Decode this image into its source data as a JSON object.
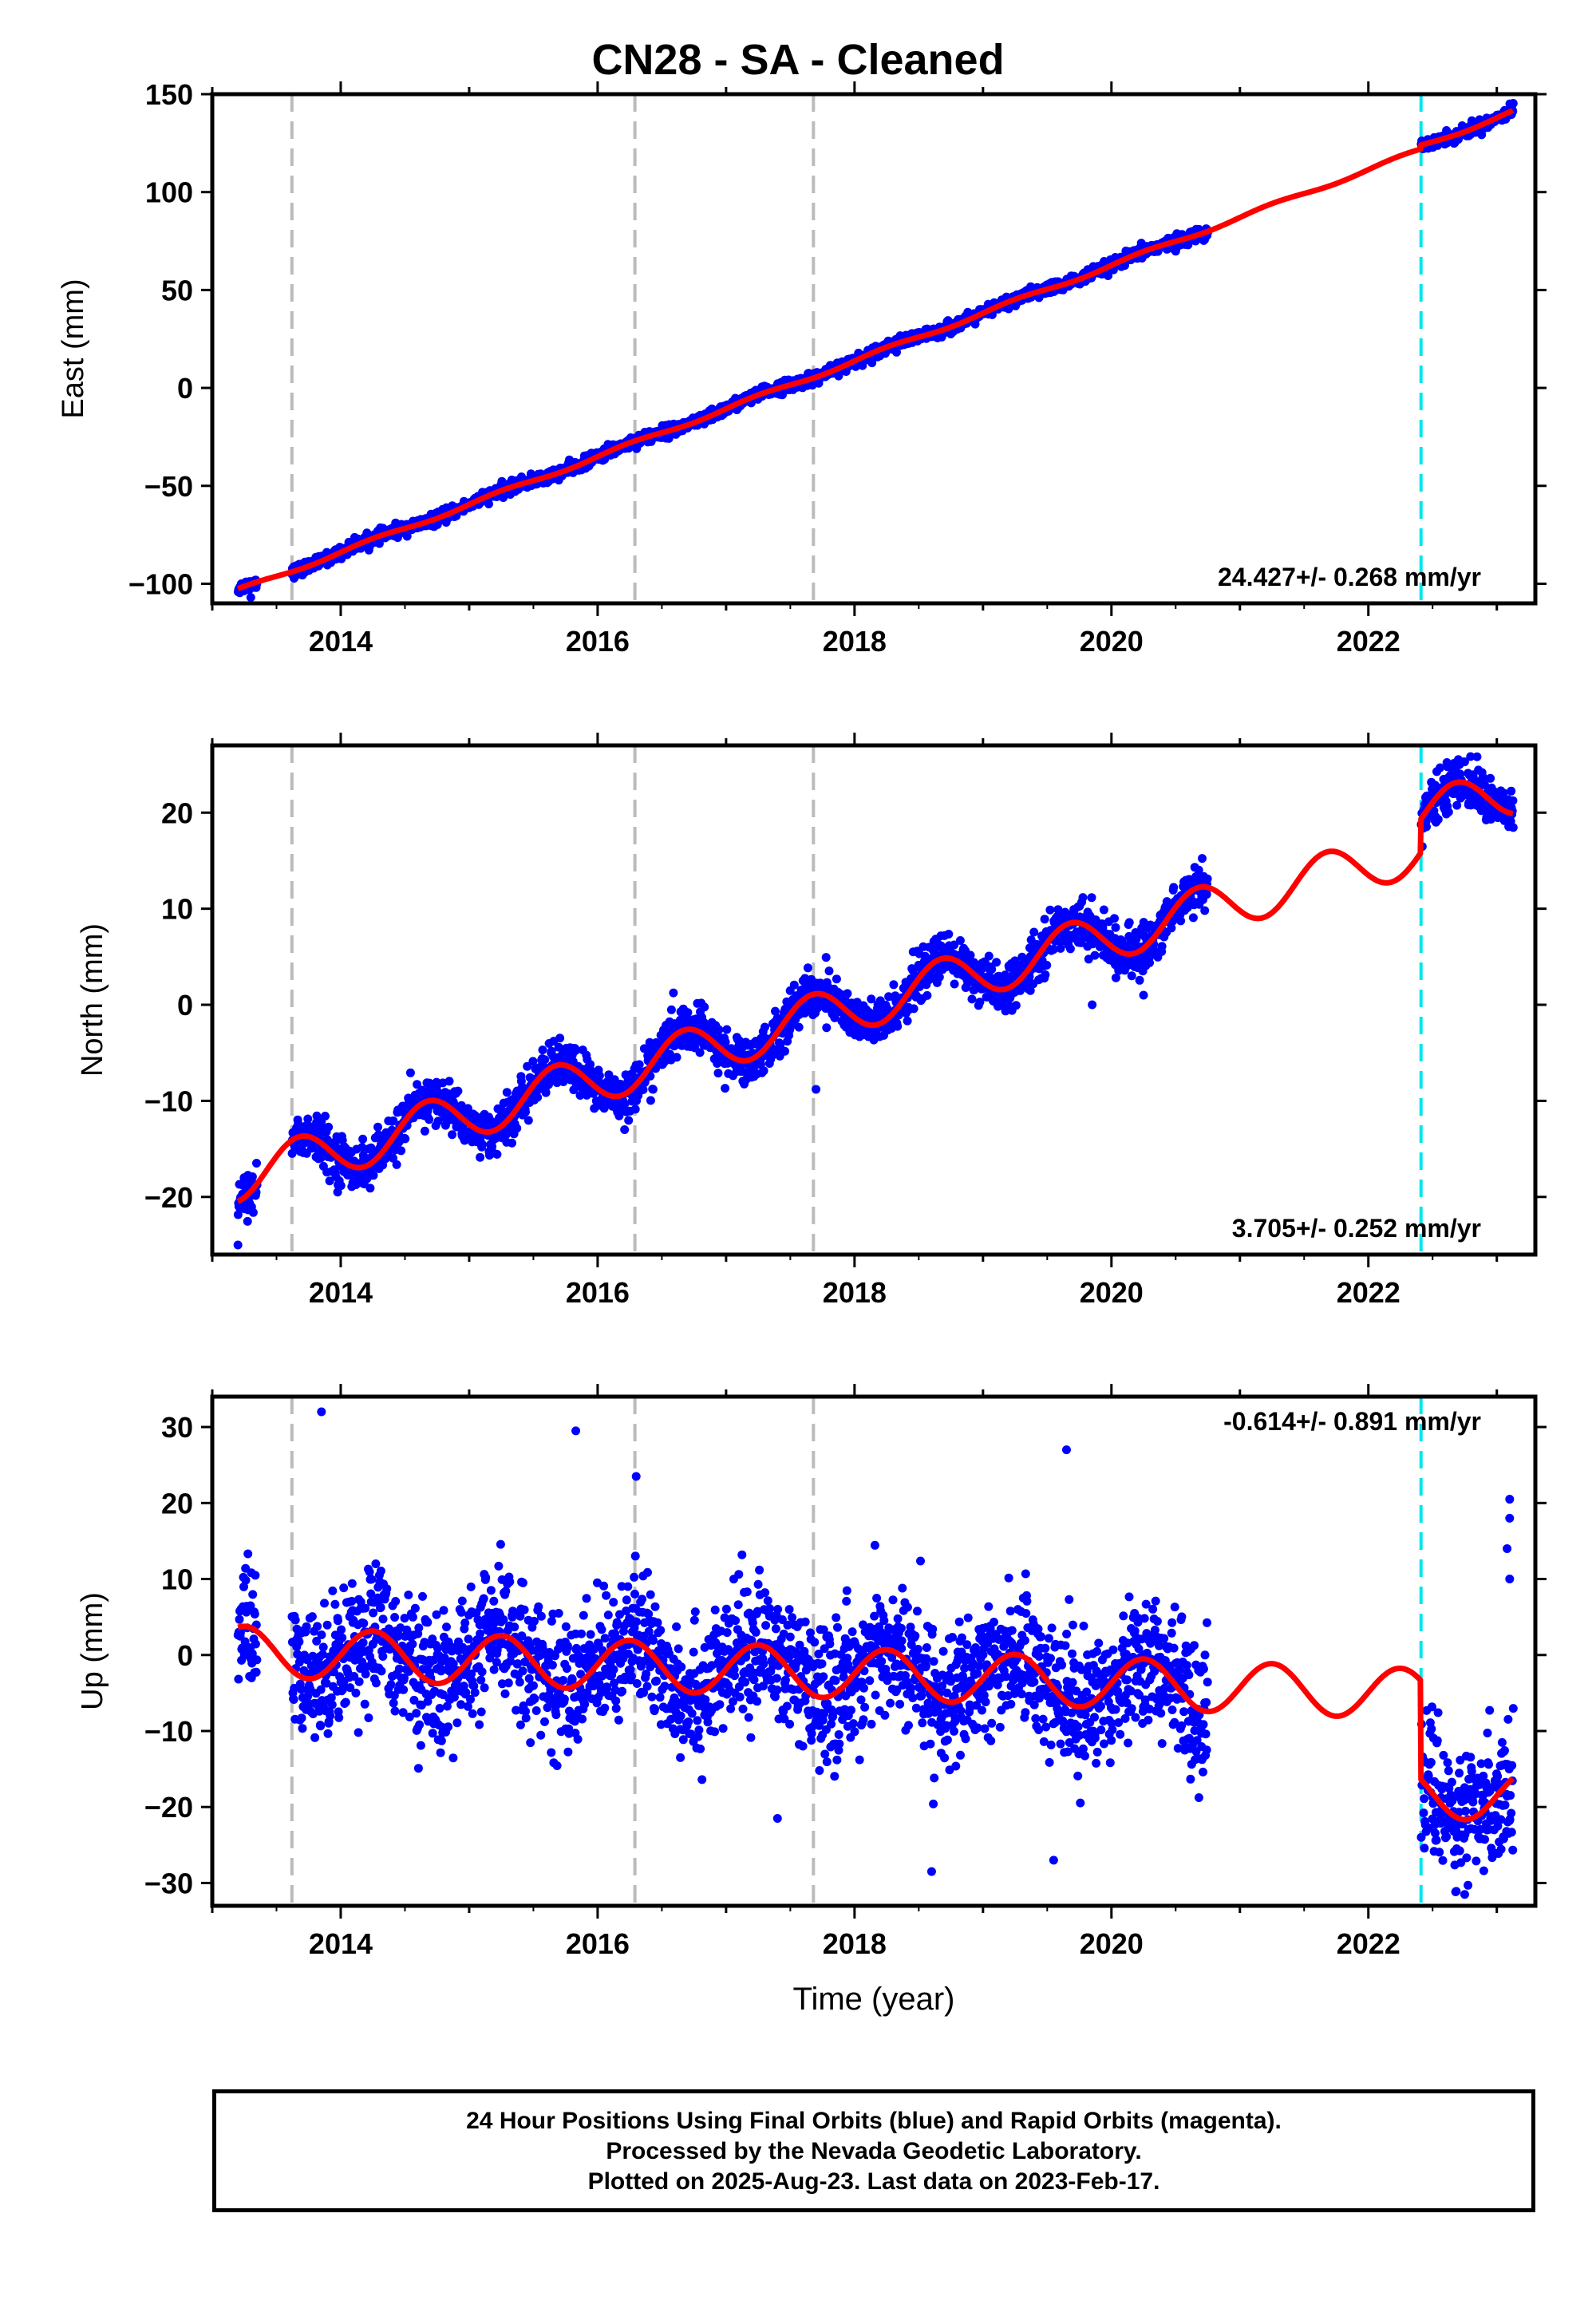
{
  "title": "CN28  - SA - Cleaned",
  "xlabel": "Time (year)",
  "footer": {
    "line1": "24 Hour Positions Using Final Orbits (blue) and Rapid Orbits (magenta).",
    "line2": "Processed by the Nevada Geodetic Laboratory.",
    "line3": "Plotted on 2025-Aug-23. Last data on 2023-Feb-17."
  },
  "colors": {
    "points": "#0000ff",
    "fit": "#ff0000",
    "gray_events": "#bbbbbb",
    "cyan_event": "#00e5ee"
  },
  "chart_data": [
    {
      "type": "scatter",
      "ylabel": "East (mm)",
      "rate_label": "24.427+/- 0.268 mm/yr",
      "rate_position": "bottom-right",
      "xlim": [
        2013.0,
        2023.3
      ],
      "ylim": [
        -110,
        150
      ],
      "xticks": [
        2014,
        2016,
        2018,
        2020,
        2022
      ],
      "yticks": [
        -100,
        -50,
        0,
        50,
        100,
        150
      ],
      "y_tick_labels": [
        "−100",
        "−50",
        "0",
        "50",
        "100",
        "150"
      ],
      "gray_event_lines": [
        2013.62,
        2016.29,
        2017.68
      ],
      "cyan_event_lines": [
        2022.41
      ],
      "fit_model": {
        "type": "linear-seasonal",
        "ref_year": 2013.2,
        "offset": -103.5,
        "rate": 24.427,
        "annual_amp": 1.0,
        "annual_phase": 0.0,
        "offset_2022_41": 2.0
      },
      "data_segments": [
        [
          2013.2,
          2013.35
        ],
        [
          2013.62,
          2020.75
        ],
        [
          2022.41,
          2023.13
        ]
      ],
      "scatter_sigma": 1.5,
      "outliers": [
        {
          "x": 2013.3,
          "y": -107
        }
      ]
    },
    {
      "type": "scatter",
      "ylabel": "North (mm)",
      "rate_label": "3.705+/- 0.252 mm/yr",
      "rate_position": "bottom-right",
      "xlim": [
        2013.0,
        2023.3
      ],
      "ylim": [
        -26,
        27
      ],
      "xticks": [
        2014,
        2016,
        2018,
        2020,
        2022
      ],
      "yticks": [
        -20,
        -10,
        0,
        10,
        20
      ],
      "y_tick_labels": [
        "−20",
        "−10",
        "0",
        "10",
        "20"
      ],
      "gray_event_lines": [
        2013.62,
        2016.29,
        2017.68
      ],
      "cyan_event_lines": [
        2022.41
      ],
      "fit_model": {
        "type": "linear-seasonal",
        "ref_year": 2013.2,
        "offset": -18.0,
        "rate": 3.705,
        "annual_amp": 2.5,
        "annual_phase": 3.6,
        "offset_2022_41": 3.5
      },
      "data_segments": [
        [
          2013.2,
          2013.35
        ],
        [
          2013.62,
          2020.75
        ],
        [
          2022.41,
          2023.13
        ]
      ],
      "scatter_sigma": 1.2,
      "outliers": [
        {
          "x": 2017.7,
          "y": -8.8
        },
        {
          "x": 2019.85,
          "y": 0
        },
        {
          "x": 2020.25,
          "y": 1
        },
        {
          "x": 2013.2,
          "y": -25
        }
      ]
    },
    {
      "type": "scatter",
      "ylabel": "Up (mm)",
      "rate_label": "-0.614+/- 0.891 mm/yr",
      "rate_position": "top-right",
      "xlim": [
        2013.0,
        2023.3
      ],
      "ylim": [
        -33,
        34
      ],
      "xticks": [
        2014,
        2016,
        2018,
        2020,
        2022
      ],
      "yticks": [
        -30,
        -20,
        -10,
        0,
        10,
        20,
        30
      ],
      "y_tick_labels": [
        "−30",
        "−20",
        "−10",
        "0",
        "10",
        "20",
        "30"
      ],
      "gray_event_lines": [
        2013.62,
        2016.29,
        2017.68
      ],
      "cyan_event_lines": [
        2022.41
      ],
      "fit_model": {
        "type": "linear-seasonal",
        "ref_year": 2013.2,
        "offset": 0.5,
        "rate": -0.614,
        "annual_amp": 3.3,
        "annual_phase": 0.0,
        "offset_2022_41": -13.0
      },
      "data_segments": [
        [
          2013.2,
          2013.35
        ],
        [
          2013.62,
          2020.75
        ],
        [
          2022.41,
          2023.13
        ]
      ],
      "scatter_sigma": 4.3,
      "outliers": [
        {
          "x": 2013.85,
          "y": 32
        },
        {
          "x": 2015.83,
          "y": 29.5
        },
        {
          "x": 2016.3,
          "y": 23.5
        },
        {
          "x": 2019.65,
          "y": 27
        },
        {
          "x": 2018.6,
          "y": -28.5
        },
        {
          "x": 2019.55,
          "y": -27
        },
        {
          "x": 2022.75,
          "y": -31.5
        },
        {
          "x": 2017.4,
          "y": -21.5
        },
        {
          "x": 2023.1,
          "y": 20.5
        },
        {
          "x": 2023.1,
          "y": 18
        },
        {
          "x": 2023.08,
          "y": 14
        },
        {
          "x": 2023.1,
          "y": 10
        }
      ]
    }
  ]
}
